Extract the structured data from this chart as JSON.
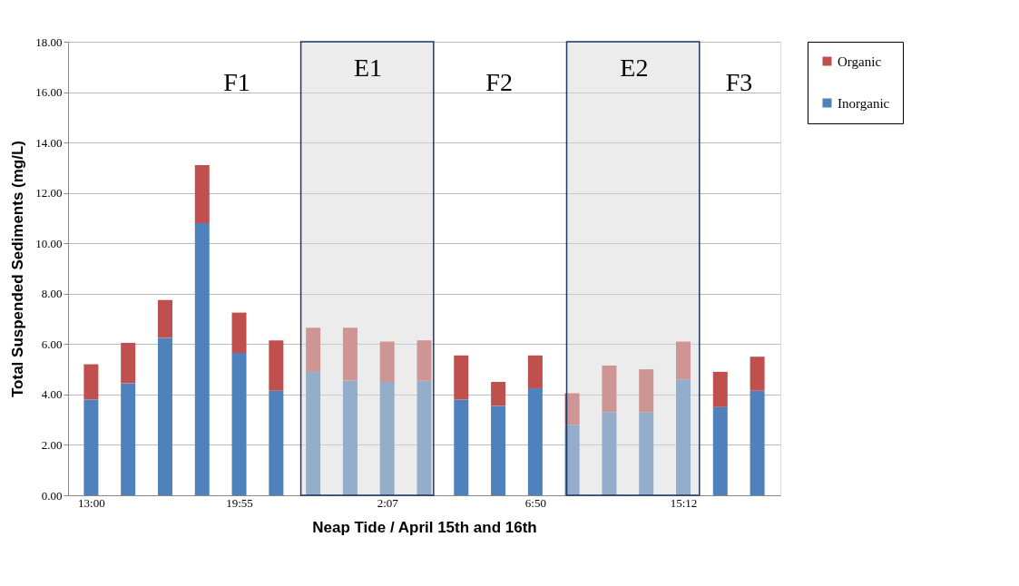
{
  "chart_data": {
    "type": "bar",
    "stacked": true,
    "xlabel": "Neap Tide / April 15th and 16th",
    "ylabel": "Total Suspended Sediments (mg/L)",
    "categories": [
      "13:00",
      null,
      null,
      null,
      "19:55",
      null,
      null,
      null,
      "2:07",
      null,
      null,
      null,
      "6:50",
      null,
      null,
      null,
      "15:12",
      null,
      null
    ],
    "series": [
      {
        "name": "Inorganic",
        "color": "#4f81bd",
        "values": [
          3.8,
          4.45,
          6.25,
          10.8,
          5.65,
          4.15,
          4.9,
          4.55,
          4.5,
          4.55,
          3.8,
          3.55,
          4.25,
          2.8,
          3.3,
          3.3,
          4.6,
          3.5,
          4.15
        ]
      },
      {
        "name": "Organic",
        "color": "#c0504d",
        "values": [
          1.4,
          1.6,
          1.5,
          2.3,
          1.6,
          2.0,
          1.75,
          2.1,
          1.6,
          1.6,
          1.75,
          0.95,
          1.3,
          1.25,
          1.85,
          1.7,
          1.5,
          1.4,
          1.35
        ]
      }
    ],
    "ylim": [
      0,
      18
    ],
    "yticks": [
      {
        "value": 0,
        "label": "0.00"
      },
      {
        "value": 2,
        "label": "2.00"
      },
      {
        "value": 4,
        "label": "4.00"
      },
      {
        "value": 6,
        "label": "6.00"
      },
      {
        "value": 8,
        "label": "8.00"
      },
      {
        "value": 10,
        "label": "10.00"
      },
      {
        "value": 12,
        "label": "12.00"
      },
      {
        "value": 14,
        "label": "14.00"
      },
      {
        "value": 16,
        "label": "16.00"
      },
      {
        "value": 18,
        "label": "18.00"
      }
    ],
    "annotations": [
      "F1",
      "E1",
      "F2",
      "E2",
      "F3"
    ],
    "grid": "y",
    "legend": "top right"
  }
}
